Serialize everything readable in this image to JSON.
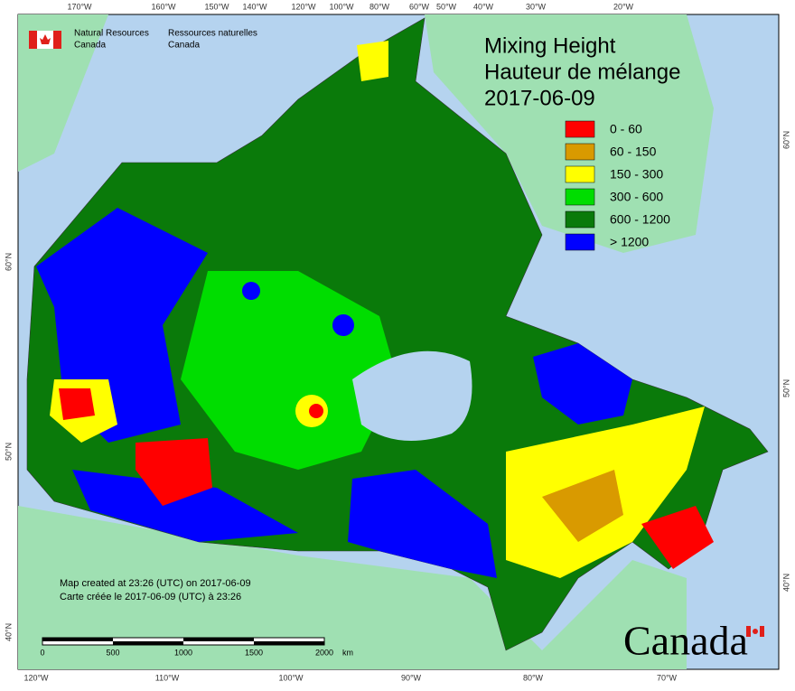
{
  "header": {
    "agency_en": [
      "Natural Resources",
      "Canada"
    ],
    "agency_fr": [
      "Ressources naturelles",
      "Canada"
    ]
  },
  "title": [
    "Mixing Height",
    "Hauteur de mélange",
    "2017-06-09"
  ],
  "legend": [
    {
      "label": "0 - 60",
      "color": "#ff0000"
    },
    {
      "label": "60 - 150",
      "color": "#d99a00"
    },
    {
      "label": "150 - 300",
      "color": "#ffff00"
    },
    {
      "label": "300 - 600",
      "color": "#00dd00"
    },
    {
      "label": "600 - 1200",
      "color": "#0a7a0a"
    },
    {
      "label": "> 1200",
      "color": "#0000ff"
    }
  ],
  "graticule": {
    "top": [
      "170°W",
      "160°W",
      "150°W",
      "140°W",
      "120°W",
      "100°W",
      "80°W",
      "60°W",
      "50°W",
      "40°W",
      "30°W",
      "20°W"
    ],
    "bottom": [
      "120°W",
      "110°W",
      "100°W",
      "90°W",
      "80°W",
      "70°W"
    ],
    "left": [
      "60°N",
      "50°N",
      "40°N"
    ],
    "right": [
      "60°N",
      "50°N",
      "40°N"
    ]
  },
  "notes": [
    "Map created at 23:26 (UTC) on 2017-06-09",
    "Carte créée le 2017-06-09 (UTC) à 23:26"
  ],
  "scale_bar": {
    "ticks": [
      "0",
      "500",
      "1000",
      "1500",
      "2000"
    ],
    "unit": "km"
  },
  "wordmark": "Canada"
}
